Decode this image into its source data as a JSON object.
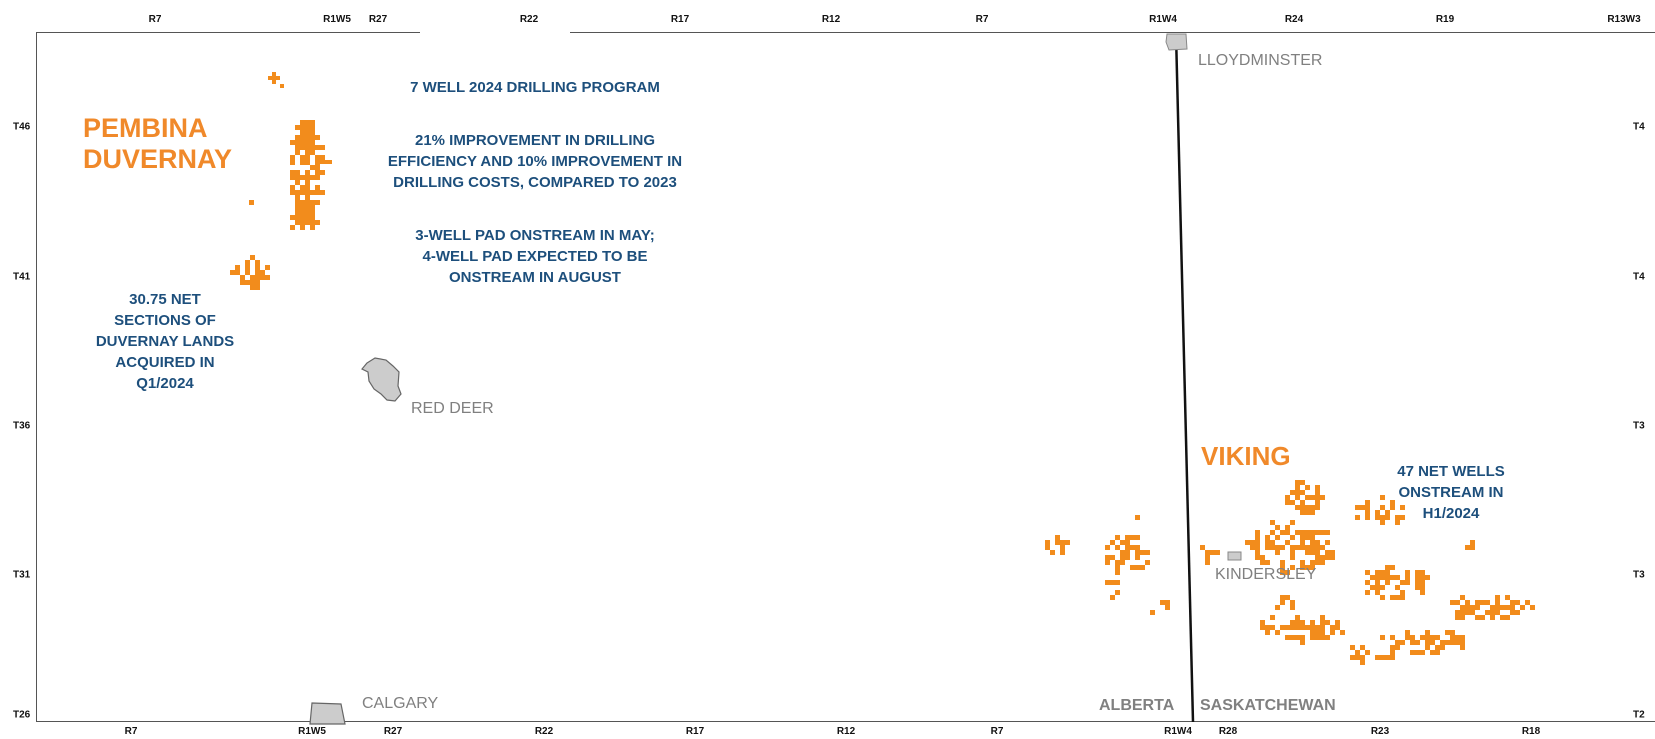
{
  "map": {
    "top_range_labels": [
      "R7",
      "R1W5",
      "R27",
      "R22",
      "R17",
      "R12",
      "R7",
      "R1W4",
      "R24",
      "R19",
      "R13W3"
    ],
    "bottom_range_labels": [
      "R7",
      "R1W5",
      "R27",
      "R22",
      "R17",
      "R12",
      "R7",
      "R1W4",
      "R28",
      "R23",
      "R18"
    ],
    "left_township_labels": [
      "T46",
      "T41",
      "T36",
      "T31",
      "T26"
    ],
    "right_township_labels": [
      "T4",
      "T4",
      "T3",
      "T3",
      "T2"
    ],
    "regions": {
      "pembina": "PEMBINA\nDUVERNAY",
      "viking": "VIKING"
    },
    "notes": {
      "program": "7 WELL 2024 DRILLING PROGRAM",
      "efficiency": "21% IMPROVEMENT IN DRILLING\nEFFICIENCY AND 10% IMPROVEMENT IN\nDRILLING COSTS, COMPARED TO 2023",
      "pads": "3-WELL PAD ONSTREAM IN MAY;\n4-WELL PAD EXPECTED TO BE\nONSTREAM IN AUGUST",
      "lands": "30.75 NET\nSECTIONS OF\nDUVERNAY LANDS\nACQUIRED IN\nQ1/2024",
      "wells": "47 NET WELLS\nONSTREAM IN\nH1/2024"
    },
    "cities": {
      "lloydminster": "LLOYDMINSTER",
      "red_deer": "RED DEER",
      "kindersley": "KINDERSLEY",
      "calgary": "CALGARY"
    },
    "provinces": {
      "alberta": "ALBERTA",
      "saskatchewan": "SASKATCHEWAN"
    },
    "colors": {
      "land": "#f28c1c",
      "note_text": "#1d4f7c",
      "region_text": "#f0892a",
      "city_fill": "#cccccc",
      "city_text": "#808080"
    }
  }
}
